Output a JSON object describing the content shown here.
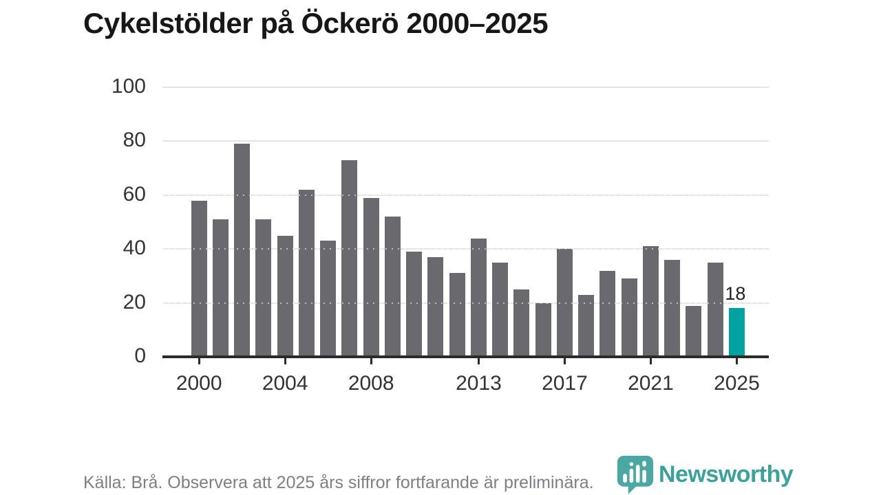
{
  "title": "Cykelstölder på Öckerö 2000–2025",
  "footer": {
    "source_note": "Källa: Brå. Observera att 2025 års siffror fortfarande är preliminära."
  },
  "branding": {
    "logo_text": "Newsworthy",
    "logo_icon": "speech-bubble-bar-chart-icon",
    "logo_color": "#3aa29b",
    "logo_icon_color": "#4aa7a1"
  },
  "colors": {
    "bar": "#6a6a6e",
    "highlight_bar": "#00a39f",
    "gridline": "#e4e4e4",
    "axis": "#2b2b2b",
    "tick_label": "#333333",
    "title_text": "#171717",
    "footer_text": "#7e7e84"
  },
  "chart_data": {
    "type": "bar",
    "title": "Cykelstölder på Öckerö 2000–2025",
    "xlabel": "",
    "ylabel": "",
    "categories": [
      2000,
      2001,
      2002,
      2003,
      2004,
      2005,
      2006,
      2007,
      2008,
      2009,
      2010,
      2011,
      2012,
      2013,
      2014,
      2015,
      2016,
      2017,
      2018,
      2019,
      2020,
      2021,
      2022,
      2023,
      2024,
      2025
    ],
    "values": [
      58,
      51,
      79,
      51,
      45,
      62,
      43,
      73,
      59,
      52,
      39,
      37,
      31,
      44,
      35,
      25,
      20,
      40,
      23,
      32,
      29,
      41,
      36,
      19,
      35,
      18
    ],
    "highlight_category": 2025,
    "highlight_value_label": "18",
    "ylim": [
      0,
      100
    ],
    "yticks": [
      0,
      20,
      40,
      60,
      80,
      100
    ],
    "xticks": [
      2000,
      2004,
      2008,
      2013,
      2017,
      2021,
      2025
    ],
    "grid": true,
    "legend_position": "none"
  }
}
